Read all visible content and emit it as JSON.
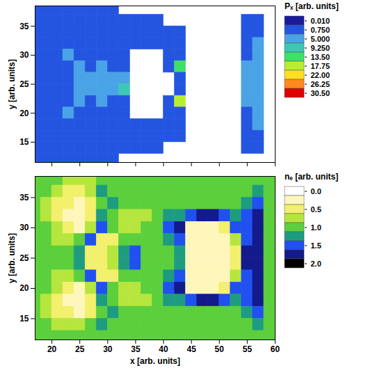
{
  "chart_data": [
    {
      "type": "heatmap",
      "y_label": "y [arb. units]",
      "tick_labels": "y",
      "xlim": [
        17,
        60
      ],
      "ylim": [
        11.5,
        38.5
      ],
      "xticks": [
        20,
        25,
        30,
        35,
        40,
        45,
        50,
        55,
        60
      ],
      "yticks": [
        15,
        20,
        25,
        30,
        35
      ],
      "x": [
        17,
        19,
        21,
        23,
        25,
        27,
        29,
        31,
        33,
        35,
        37,
        39,
        41,
        43,
        45,
        47,
        49,
        51,
        53,
        55,
        57,
        59
      ],
      "y": [
        38,
        36,
        34,
        32,
        30,
        28,
        26,
        24,
        22,
        20,
        18,
        16,
        14,
        12
      ],
      "values": [
        [
          0.75,
          0.75,
          0.75,
          0.75,
          0.75,
          0.75,
          0.75,
          0.75,
          null,
          null,
          null,
          null,
          null,
          null,
          null,
          null,
          null,
          null,
          null,
          null,
          null,
          null
        ],
        [
          0.75,
          0.75,
          0.75,
          0.75,
          0.75,
          0.75,
          0.75,
          0.75,
          0.75,
          0.75,
          0.75,
          0.75,
          null,
          null,
          null,
          null,
          null,
          null,
          null,
          0.75,
          0.75,
          null
        ],
        [
          0.75,
          0.75,
          0.75,
          0.75,
          0.75,
          0.75,
          0.75,
          0.75,
          0.75,
          0.75,
          0.75,
          0.75,
          0.75,
          0.75,
          null,
          null,
          null,
          null,
          null,
          0.75,
          0.75,
          null
        ],
        [
          0.75,
          0.75,
          0.75,
          0.75,
          0.75,
          0.75,
          0.75,
          0.75,
          0.75,
          0.75,
          0.75,
          0.75,
          0.75,
          0.75,
          null,
          null,
          null,
          null,
          null,
          0.75,
          5.0,
          null
        ],
        [
          0.75,
          0.75,
          0.75,
          5.0,
          0.75,
          0.75,
          0.75,
          0.75,
          0.75,
          null,
          null,
          null,
          0.75,
          0.75,
          null,
          null,
          null,
          null,
          null,
          0.75,
          5.0,
          null
        ],
        [
          0.75,
          0.75,
          0.75,
          0.75,
          5.0,
          0.75,
          5.0,
          0.75,
          0.75,
          null,
          null,
          null,
          0.75,
          13.5,
          null,
          null,
          null,
          null,
          null,
          5.0,
          5.0,
          null
        ],
        [
          0.75,
          0.75,
          0.75,
          0.75,
          5.0,
          5.0,
          5.0,
          5.0,
          5.0,
          null,
          null,
          null,
          null,
          0.75,
          null,
          null,
          null,
          null,
          null,
          5.0,
          5.0,
          null
        ],
        [
          0.75,
          0.75,
          0.75,
          0.75,
          5.0,
          5.0,
          5.0,
          5.0,
          9.25,
          null,
          null,
          null,
          null,
          0.75,
          null,
          null,
          null,
          null,
          null,
          5.0,
          5.0,
          null
        ],
        [
          0.75,
          0.75,
          0.75,
          0.75,
          5.0,
          0.75,
          5.0,
          0.75,
          0.75,
          null,
          null,
          null,
          0.75,
          17.75,
          null,
          null,
          null,
          null,
          null,
          5.0,
          5.0,
          null
        ],
        [
          0.75,
          0.75,
          0.75,
          5.0,
          0.75,
          0.75,
          0.75,
          0.75,
          0.75,
          null,
          null,
          null,
          0.75,
          0.75,
          null,
          null,
          null,
          null,
          null,
          0.75,
          5.0,
          null
        ],
        [
          0.75,
          0.75,
          0.75,
          0.75,
          0.75,
          0.75,
          0.75,
          0.75,
          0.75,
          0.75,
          0.75,
          0.75,
          0.75,
          0.75,
          null,
          null,
          null,
          null,
          null,
          0.75,
          5.0,
          null
        ],
        [
          0.75,
          0.75,
          0.75,
          0.75,
          0.75,
          0.75,
          0.75,
          0.75,
          0.75,
          0.75,
          0.75,
          0.75,
          0.75,
          0.75,
          null,
          null,
          null,
          null,
          null,
          0.75,
          0.75,
          null
        ],
        [
          0.75,
          0.75,
          0.75,
          0.75,
          0.75,
          0.75,
          0.75,
          0.75,
          0.75,
          0.75,
          0.75,
          0.75,
          null,
          null,
          null,
          null,
          null,
          null,
          null,
          0.75,
          0.75,
          null
        ],
        [
          0.75,
          0.75,
          0.75,
          0.75,
          0.75,
          0.75,
          0.75,
          0.75,
          null,
          null,
          null,
          null,
          null,
          null,
          null,
          null,
          null,
          null,
          null,
          null,
          null,
          null
        ]
      ],
      "colorbar": {
        "title": "Pₓ [arb. units]",
        "levels": [
          0.01,
          0.75,
          5,
          9.25,
          13.5,
          17.75,
          22,
          26.25,
          30.5
        ],
        "colors": [
          "#1a1a9c",
          "#2455e0",
          "#4aa3e6",
          "#3cc8b4",
          "#3ee06a",
          "#b8ee30",
          "#ffe020",
          "#ff8a1e",
          "#e00000"
        ],
        "ticks": [
          {
            "value": 0.01,
            "label": "0.010"
          },
          {
            "value": 0.75,
            "label": "0.750"
          },
          {
            "value": 5,
            "label": "5.000"
          },
          {
            "value": 9.25,
            "label": "9.250"
          },
          {
            "value": 13.5,
            "label": "13.50"
          },
          {
            "value": 17.75,
            "label": "17.75"
          },
          {
            "value": 22,
            "label": "22.00"
          },
          {
            "value": 26.25,
            "label": "26.25"
          },
          {
            "value": 30.5,
            "label": "30.50"
          }
        ]
      }
    },
    {
      "type": "heatmap",
      "x_label": "x [arb. units]",
      "y_label": "y [arb. units]",
      "xlim": [
        17,
        60
      ],
      "ylim": [
        11.5,
        38.5
      ],
      "xticks": [
        20,
        25,
        30,
        35,
        40,
        45,
        50,
        55,
        60
      ],
      "yticks": [
        15,
        20,
        25,
        30,
        35
      ],
      "x": [
        17,
        19,
        21,
        23,
        25,
        27,
        29,
        31,
        33,
        35,
        37,
        39,
        41,
        43,
        45,
        47,
        49,
        51,
        53,
        55,
        57,
        59
      ],
      "y": [
        38,
        36,
        34,
        32,
        30,
        28,
        26,
        24,
        22,
        20,
        18,
        16,
        14,
        12
      ],
      "values": [
        [
          1.0,
          1.0,
          1.0,
          0.75,
          0.75,
          0.75,
          1.0,
          1.0,
          1.0,
          1.0,
          1.0,
          1.0,
          1.0,
          1.0,
          1.0,
          1.0,
          1.0,
          1.0,
          1.0,
          1.0,
          1.0,
          1.0
        ],
        [
          1.0,
          1.0,
          0.75,
          0.5,
          0.5,
          0.75,
          1.25,
          1.0,
          1.0,
          1.0,
          1.0,
          1.0,
          1.0,
          1.0,
          1.0,
          1.0,
          1.0,
          1.0,
          1.0,
          1.0,
          1.25,
          1.0
        ],
        [
          1.0,
          0.75,
          0.5,
          0.5,
          0.25,
          0.5,
          1.0,
          1.25,
          1.0,
          1.0,
          1.0,
          1.0,
          1.0,
          1.0,
          1.0,
          1.0,
          1.0,
          1.0,
          1.0,
          1.25,
          1.5,
          1.0
        ],
        [
          1.0,
          0.75,
          0.5,
          0.25,
          0.25,
          0.5,
          1.25,
          1.0,
          0.75,
          0.75,
          0.75,
          1.0,
          1.25,
          1.25,
          1.5,
          1.75,
          1.75,
          1.5,
          1.25,
          1.5,
          1.75,
          1.0
        ],
        [
          1.0,
          1.0,
          0.75,
          0.5,
          0.25,
          0.75,
          1.5,
          1.0,
          0.75,
          0.75,
          1.0,
          1.0,
          1.5,
          1.75,
          0.25,
          0.25,
          0.25,
          0.5,
          1.5,
          1.5,
          1.75,
          1.0
        ],
        [
          1.0,
          1.0,
          0.75,
          0.75,
          1.0,
          1.5,
          0.5,
          0.5,
          1.0,
          1.0,
          1.0,
          1.0,
          1.25,
          1.5,
          0.25,
          0.25,
          0.25,
          0.25,
          0.75,
          1.5,
          1.75,
          1.0
        ],
        [
          1.0,
          1.0,
          1.0,
          1.0,
          1.25,
          0.5,
          0.5,
          0.75,
          1.25,
          1.5,
          1.0,
          1.0,
          1.0,
          1.25,
          0.25,
          0.25,
          0.25,
          0.25,
          0.5,
          1.75,
          1.75,
          1.0
        ],
        [
          1.0,
          1.0,
          1.0,
          1.0,
          1.25,
          0.5,
          0.5,
          0.75,
          1.25,
          1.5,
          1.0,
          1.0,
          1.0,
          1.25,
          0.25,
          0.25,
          0.25,
          0.25,
          0.5,
          1.75,
          1.75,
          1.0
        ],
        [
          1.0,
          1.0,
          0.75,
          0.75,
          1.0,
          1.5,
          0.5,
          0.5,
          1.0,
          1.0,
          1.0,
          1.0,
          1.25,
          1.5,
          0.25,
          0.25,
          0.25,
          0.25,
          0.75,
          1.5,
          1.75,
          1.0
        ],
        [
          1.0,
          1.0,
          0.75,
          0.5,
          0.25,
          0.75,
          1.5,
          1.0,
          0.75,
          0.75,
          1.0,
          1.0,
          1.5,
          1.75,
          0.25,
          0.25,
          0.25,
          0.5,
          1.5,
          1.5,
          1.75,
          1.0
        ],
        [
          1.0,
          0.75,
          0.5,
          0.25,
          0.25,
          0.5,
          1.25,
          1.0,
          0.75,
          0.75,
          0.75,
          1.0,
          1.25,
          1.25,
          1.5,
          1.75,
          1.75,
          1.5,
          1.25,
          1.5,
          1.75,
          1.0
        ],
        [
          1.0,
          0.75,
          0.5,
          0.5,
          0.25,
          0.5,
          1.0,
          1.25,
          1.0,
          1.0,
          1.0,
          1.0,
          1.0,
          1.0,
          1.0,
          1.0,
          1.0,
          1.0,
          1.0,
          1.25,
          1.5,
          1.0
        ],
        [
          1.0,
          1.0,
          0.75,
          0.75,
          0.75,
          1.0,
          1.25,
          1.0,
          1.0,
          1.0,
          1.0,
          1.0,
          1.0,
          1.0,
          1.0,
          1.0,
          1.0,
          1.0,
          1.0,
          1.0,
          1.25,
          1.0
        ],
        [
          1.0,
          1.0,
          1.0,
          1.0,
          1.0,
          1.0,
          1.0,
          1.0,
          1.0,
          1.0,
          1.0,
          1.0,
          1.0,
          1.0,
          1.0,
          1.0,
          1.0,
          1.0,
          1.0,
          1.0,
          1.0,
          1.0
        ]
      ],
      "colorbar": {
        "title": "nₑ [arb. units]",
        "levels": [
          0,
          0.25,
          0.5,
          0.75,
          1,
          1.25,
          1.5,
          1.75,
          2
        ],
        "colors": [
          "#ffffff",
          "#fff6bc",
          "#f2f06c",
          "#b6e63e",
          "#5ccf3c",
          "#1e9c80",
          "#2050f0",
          "#121a8c",
          "#000000"
        ],
        "ticks": [
          {
            "value": 0,
            "label": "0.0"
          },
          {
            "value": 0.5,
            "label": "0.5"
          },
          {
            "value": 1,
            "label": "1.0"
          },
          {
            "value": 1.5,
            "label": "1.5"
          },
          {
            "value": 2,
            "label": "2.0"
          }
        ]
      }
    }
  ]
}
